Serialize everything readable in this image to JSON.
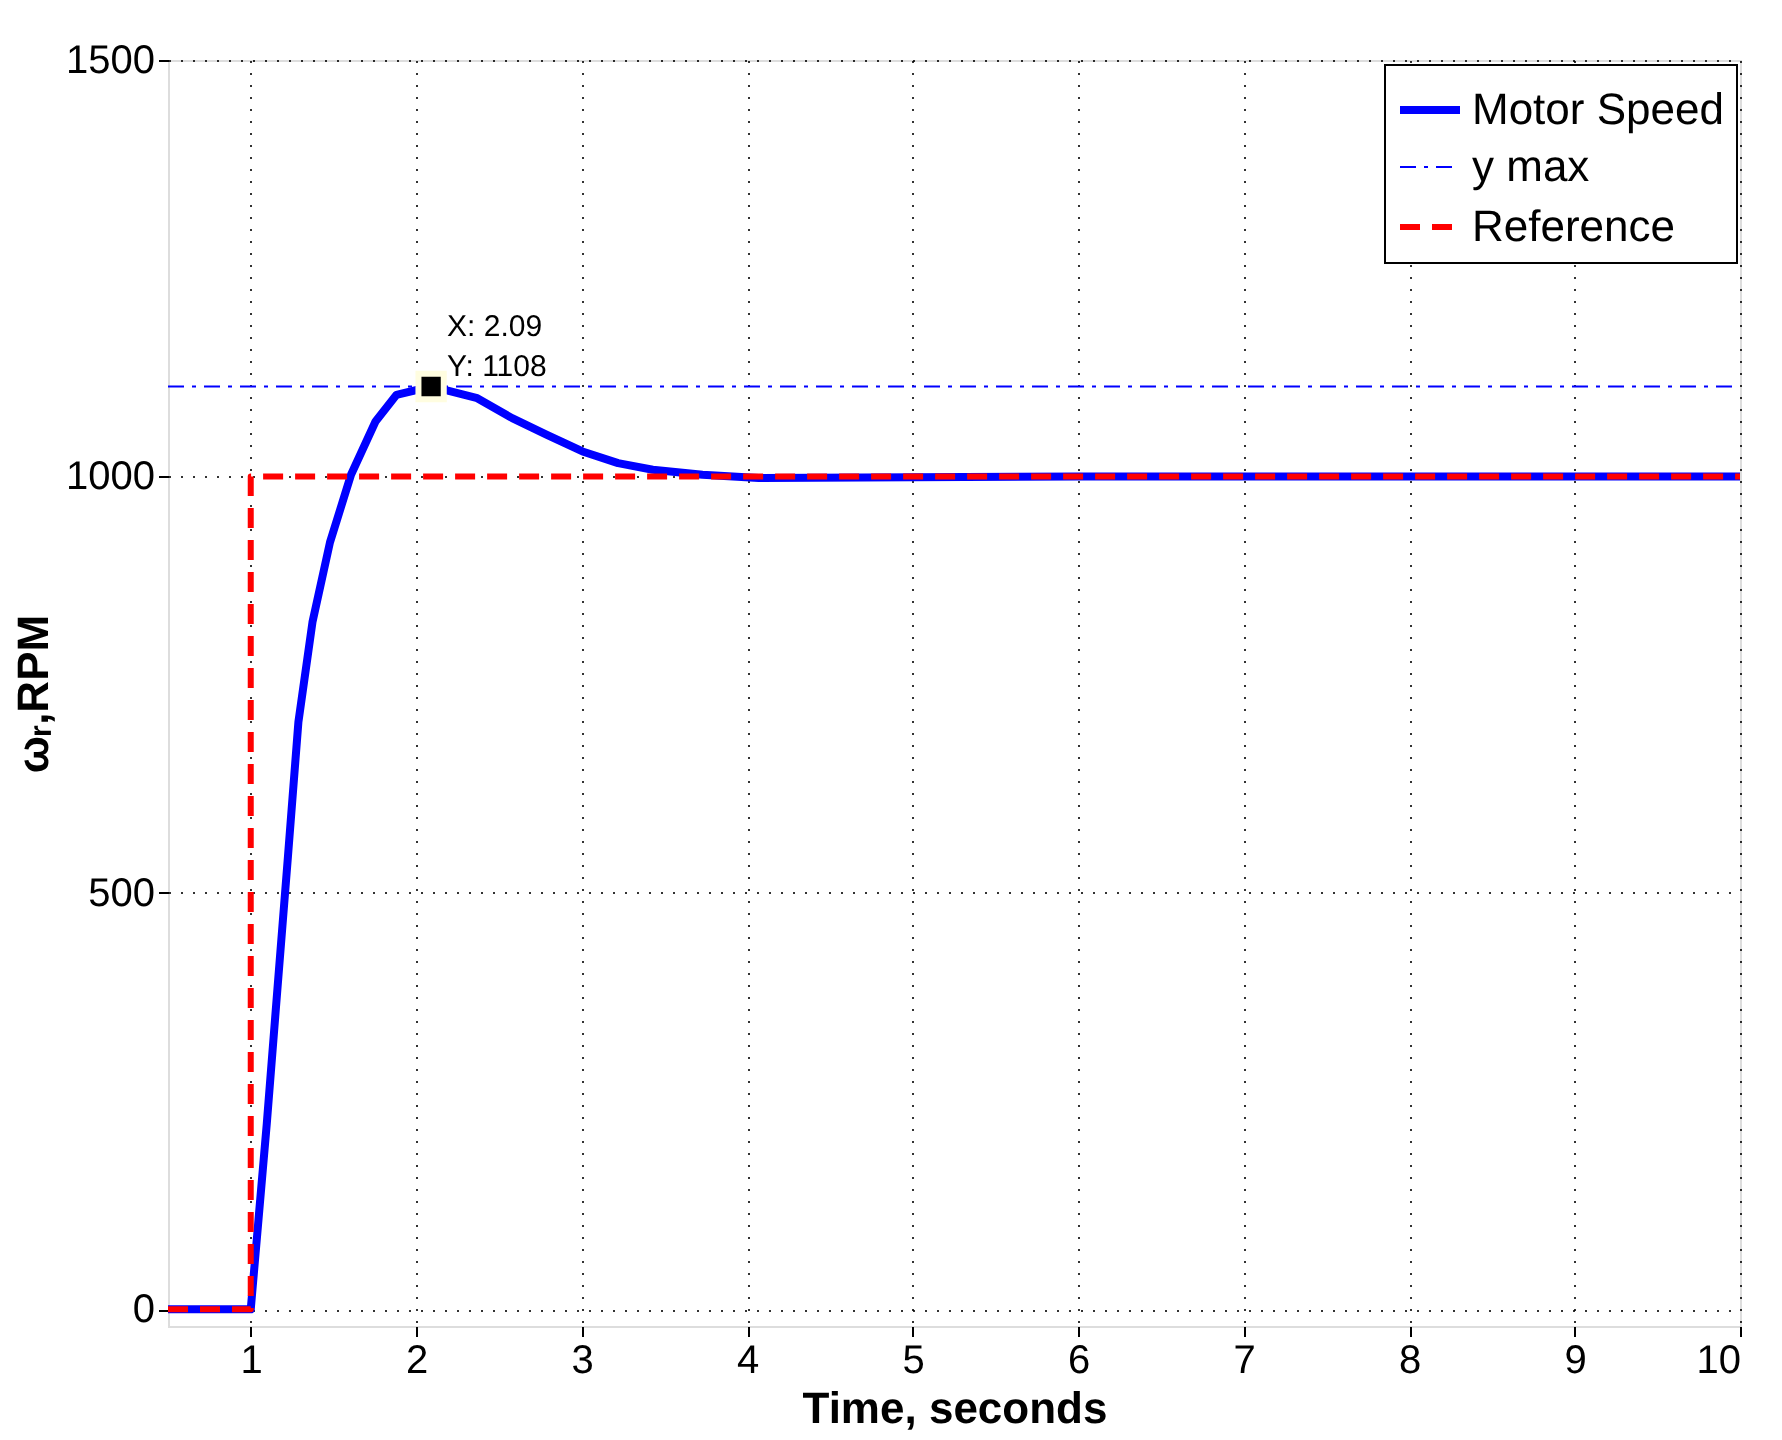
{
  "chart_data": {
    "type": "line",
    "xlabel": "Time, seconds",
    "ylabel": "ωᵣ,RPM",
    "xlim": [
      0.5,
      10
    ],
    "ylim": [
      -20,
      1500
    ],
    "xticks": [
      1,
      2,
      3,
      4,
      5,
      6,
      7,
      8,
      9,
      10
    ],
    "yticks": [
      0,
      500,
      1000,
      1500
    ],
    "grid": true,
    "legend": "top right",
    "marker": "none",
    "series": [
      {
        "name": "Motor Speed",
        "color": "#0000ff",
        "line_style": "solid",
        "x": [
          0.5,
          1.0,
          1.097,
          1.161,
          1.225,
          1.288,
          1.373,
          1.479,
          1.606,
          1.754,
          1.881,
          2.09,
          2.369,
          2.58,
          2.79,
          3.005,
          3.22,
          3.43,
          3.73,
          4.07,
          5,
          6,
          10
        ],
        "values": [
          0,
          0,
          223,
          384,
          544,
          705,
          825,
          921,
          1002,
          1066,
          1098,
          1108,
          1094,
          1070,
          1050,
          1030,
          1016,
          1008,
          1002,
          998,
          999,
          1000,
          1000
        ]
      },
      {
        "name": "y max",
        "color": "#0000ff",
        "line_style": "dashdot",
        "x": [
          0.5,
          10
        ],
        "values": [
          1108,
          1108
        ]
      },
      {
        "name": "Reference",
        "color": "#ff0000",
        "line_style": "dashed",
        "x": [
          0.5,
          1,
          1,
          10
        ],
        "values": [
          0,
          0,
          1000,
          1000
        ]
      }
    ],
    "annotations": [
      {
        "text": "X: 2.09\nY: 1108",
        "x": 2.09,
        "y": 1108
      }
    ]
  }
}
